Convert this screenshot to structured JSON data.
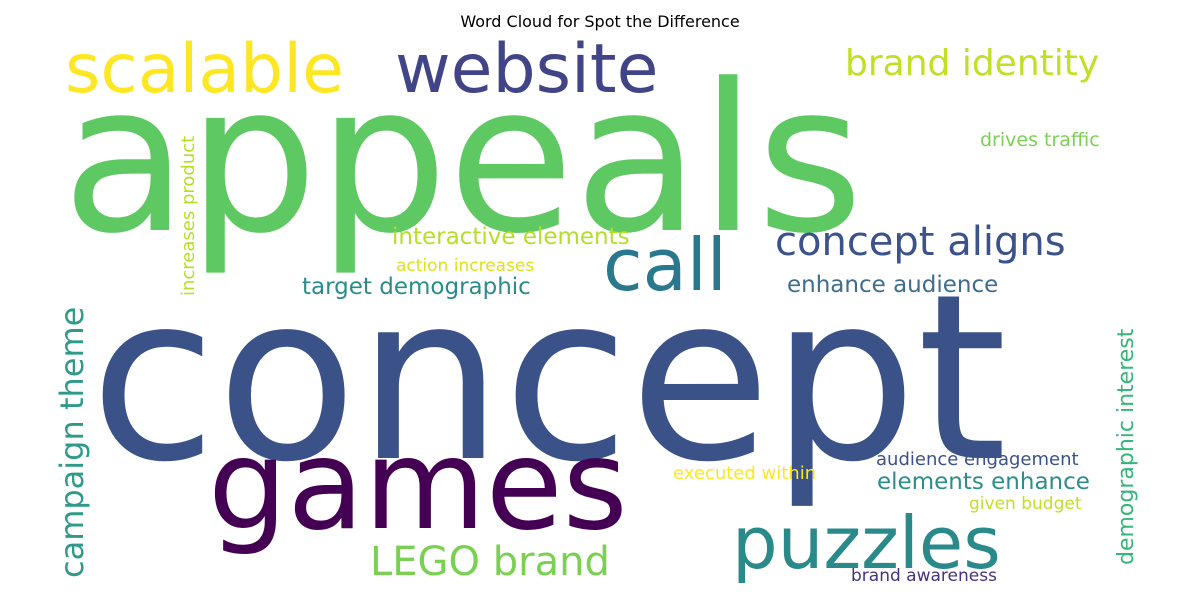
{
  "chart_data": {
    "type": "wordcloud",
    "title": "Word Cloud for Spot the Difference",
    "words": [
      {
        "text": "concept",
        "color": "#3b5289"
      },
      {
        "text": "appeals",
        "color": "#5ec962"
      },
      {
        "text": "games",
        "color": "#440154"
      },
      {
        "text": "website",
        "color": "#414487"
      },
      {
        "text": "scalable",
        "color": "#fde725"
      },
      {
        "text": "call",
        "color": "#2a788e"
      },
      {
        "text": "puzzles",
        "color": "#2a8a8a"
      },
      {
        "text": "concept aligns",
        "color": "#3b528b"
      },
      {
        "text": "brand identity",
        "color": "#c2df23"
      },
      {
        "text": "LEGO brand",
        "color": "#7ad151"
      },
      {
        "text": "campaign theme",
        "color": "#2f9a8a"
      },
      {
        "text": "interactive elements",
        "color": "#b5de2b"
      },
      {
        "text": "target demographic",
        "color": "#2a8c8c"
      },
      {
        "text": "enhance audience",
        "color": "#3e6d8e"
      },
      {
        "text": "elements enhance",
        "color": "#2c8d8a"
      },
      {
        "text": "demographic interest",
        "color": "#35b779"
      },
      {
        "text": "drives traffic",
        "color": "#7ad151"
      },
      {
        "text": "increases product",
        "color": "#b5de2b"
      },
      {
        "text": "action increases",
        "color": "#dde318"
      },
      {
        "text": "audience engagement",
        "color": "#3b5289"
      },
      {
        "text": "executed within",
        "color": "#fde725"
      },
      {
        "text": "given budget",
        "color": "#c2df23"
      },
      {
        "text": "brand awareness",
        "color": "#46327e"
      }
    ]
  }
}
